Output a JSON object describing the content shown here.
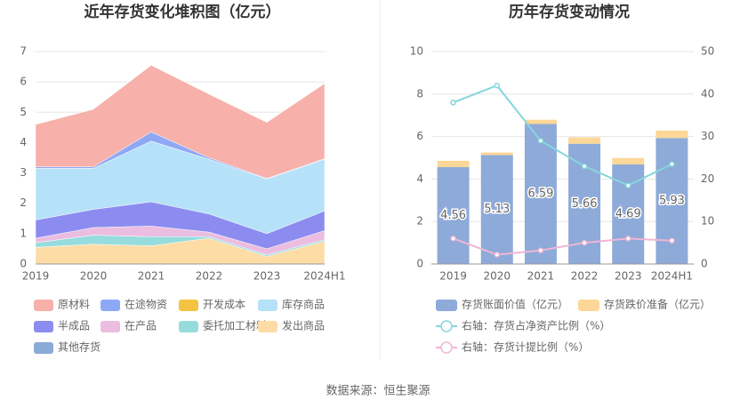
{
  "chart_data": [
    {
      "type": "stacked-area",
      "title": "近年存货变化堆积图（亿元）",
      "categories": [
        "2019",
        "2020",
        "2021",
        "2022",
        "2023",
        "2024H1"
      ],
      "ylim": [
        0,
        7
      ],
      "yticks": [
        0,
        1,
        2,
        3,
        4,
        5,
        6,
        7
      ],
      "grid": true,
      "series": [
        {
          "name": "原材料",
          "color": "#f7b0aa",
          "values": [
            1.4,
            1.9,
            2.2,
            2.1,
            1.85,
            2.48
          ]
        },
        {
          "name": "在途物资",
          "color": "#8fa8f5",
          "values": [
            0.05,
            0.05,
            0.3,
            0.05,
            0.02,
            0.02
          ]
        },
        {
          "name": "开发成本",
          "color": "#f5c342",
          "values": [
            0,
            0,
            0,
            0,
            0,
            0
          ]
        },
        {
          "name": "库存商品",
          "color": "#b5e2f8",
          "values": [
            1.7,
            1.35,
            2.0,
            1.8,
            1.8,
            1.7
          ]
        },
        {
          "name": "半成品",
          "color": "#8c8cf0",
          "values": [
            0.6,
            0.6,
            0.8,
            0.6,
            0.5,
            0.65
          ]
        },
        {
          "name": "在产品",
          "color": "#ebbde0",
          "values": [
            0.15,
            0.25,
            0.35,
            0.15,
            0.2,
            0.3
          ]
        },
        {
          "name": "委托加工材料",
          "color": "#96dcdc",
          "values": [
            0.15,
            0.3,
            0.3,
            0.05,
            0.05,
            0.05
          ]
        },
        {
          "name": "发出商品",
          "color": "#fddca6",
          "values": [
            0.55,
            0.65,
            0.6,
            0.85,
            0.25,
            0.75
          ]
        },
        {
          "name": "其他存货",
          "color": "#8aaad8",
          "values": [
            0,
            0,
            0,
            0,
            0,
            0
          ]
        }
      ]
    },
    {
      "type": "bar-line",
      "title": "历年存货变动情况",
      "categories": [
        "2019",
        "2020",
        "2021",
        "2022",
        "2023",
        "2024H1"
      ],
      "ylim": [
        0,
        10
      ],
      "yticks": [
        0,
        2,
        4,
        6,
        8,
        10
      ],
      "y2lim": [
        0,
        50
      ],
      "y2ticks": [
        0,
        10,
        20,
        30,
        40,
        50
      ],
      "grid": true,
      "series": [
        {
          "name": "存货账面价值（亿元）",
          "color": "#8eaad9",
          "values": [
            4.56,
            5.13,
            6.59,
            5.66,
            4.69,
            5.93
          ]
        },
        {
          "name": "存货跌价准备（亿元）",
          "color": "#fcd797",
          "values": [
            0.3,
            0.12,
            0.2,
            0.3,
            0.3,
            0.35
          ]
        },
        {
          "name": "右轴：存货占净资产比例（%）",
          "color": "#86d6dc",
          "axis": "y2",
          "values": [
            38,
            42,
            29,
            23,
            18.5,
            23.5
          ]
        },
        {
          "name": "右轴：存货计提比例（%）",
          "color": "#eeb6d4",
          "axis": "y2",
          "values": [
            6,
            2.2,
            3.2,
            5,
            6,
            5.5
          ]
        }
      ]
    }
  ],
  "source": "数据来源：恒生聚源"
}
